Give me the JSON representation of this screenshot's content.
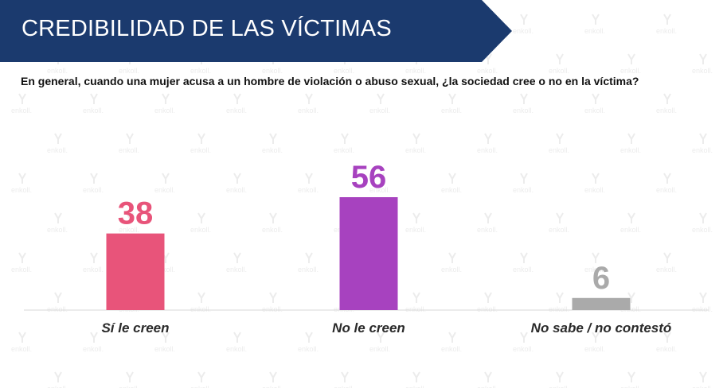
{
  "header": {
    "title": "CREDIBILIDAD DE LAS VÍCTIMAS",
    "question": "En general, cuando una mujer acusa a un hombre de violación o abuso sexual, ¿la sociedad cree o no en la víctima?"
  },
  "watermark": {
    "text": "enkoll."
  },
  "colors": {
    "banner": "#1b3a6e",
    "si_le_creen": "#e8547a",
    "no_le_creen": "#a742bf",
    "no_sabe": "#aaaaaa"
  },
  "chart_data": {
    "type": "bar",
    "title": "",
    "xlabel": "",
    "ylabel": "",
    "ylim": [
      0,
      60
    ],
    "grid": false,
    "categories": [
      "Sí le creen",
      "No le creen",
      "No sabe / no contestó"
    ],
    "values": [
      38,
      56,
      6
    ],
    "value_labels": [
      "38",
      "56",
      "6"
    ],
    "colors": [
      "#e8547a",
      "#a742bf",
      "#aaaaaa"
    ]
  }
}
